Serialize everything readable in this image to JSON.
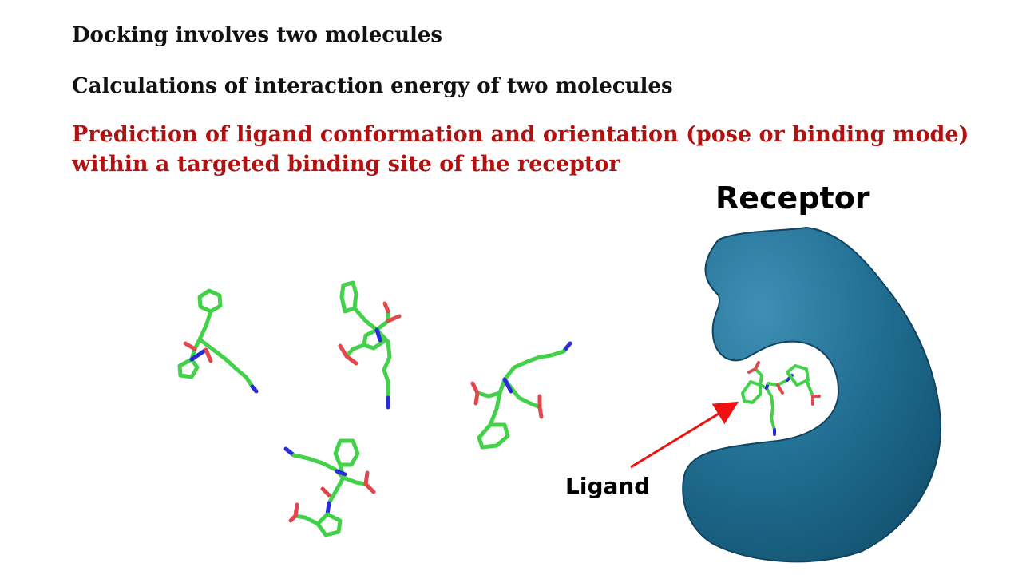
{
  "slide": {
    "lines": [
      "Docking involves two molecules",
      "Calculations of interaction energy of two molecules",
      "Prediction of ligand conformation and orientation (pose or binding mode)",
      "within a targeted binding site of the receptor"
    ],
    "receptor_label": "Receptor",
    "ligand_label": "Ligand"
  },
  "colors": {
    "text": "#111111",
    "highlight": "#b01212",
    "receptor": "#1a6a8e",
    "carbon": "#43d14a",
    "nitrogen": "#2a2ad8",
    "oxygen": "#e2474d",
    "arrow": "#ee1111"
  },
  "icons": [
    "receptor-protein-shape",
    "ligand-molecule",
    "arrow"
  ]
}
